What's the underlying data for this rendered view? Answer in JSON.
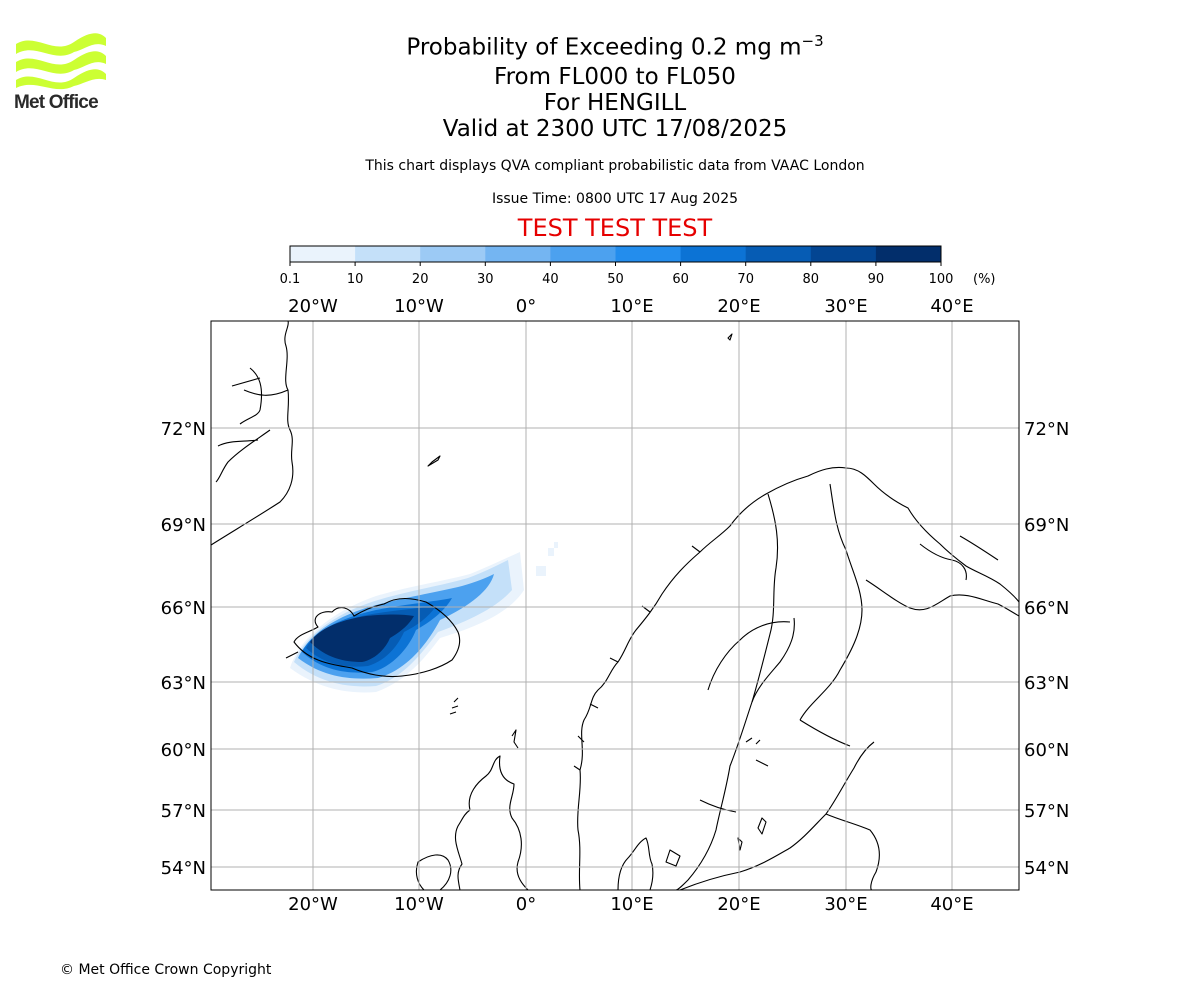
{
  "header": {
    "title_prefix": "Probability of Exceeding 0.2 mg m",
    "title_exponent": "−3",
    "level_range": "From FL000 to FL050",
    "volcano": "For HENGILL",
    "valid_time": "Valid at 2300 UTC 17/08/2025",
    "disclaimer": "This chart displays QVA compliant probabilistic data from VAAC London",
    "issue_time": "Issue Time: 0800 UTC 17 Aug 2025",
    "test_banner": "TEST TEST TEST"
  },
  "logo": {
    "text": "Met Office",
    "color": "#ccff33"
  },
  "colorbar": {
    "ticks": [
      "0.1",
      "10",
      "20",
      "30",
      "40",
      "50",
      "60",
      "70",
      "80",
      "90",
      "100"
    ],
    "unit": "(%)",
    "colors": [
      "#eaf3fc",
      "#c4e0f9",
      "#9ccaf5",
      "#74b5f2",
      "#4ca1ef",
      "#238ded",
      "#0c73d5",
      "#065cb4",
      "#034592",
      "#022e6b"
    ]
  },
  "map": {
    "lon_labels": [
      "20°W",
      "10°W",
      "0°",
      "10°E",
      "20°E",
      "30°E",
      "40°E"
    ],
    "lat_labels": [
      "72°N",
      "69°N",
      "66°N",
      "63°N",
      "60°N",
      "57°N",
      "54°N"
    ],
    "plume_levels": [
      {
        "level": 1,
        "label": "0.1–10"
      },
      {
        "level": 2,
        "label": "10–20"
      },
      {
        "level": 5,
        "label": "40–50"
      },
      {
        "level": 7,
        "label": "60–70"
      },
      {
        "level": 8,
        "label": "70–80"
      },
      {
        "level": 10,
        "label": "90–100"
      }
    ]
  },
  "footer": {
    "copyright": "© Met Office Crown Copyright"
  }
}
